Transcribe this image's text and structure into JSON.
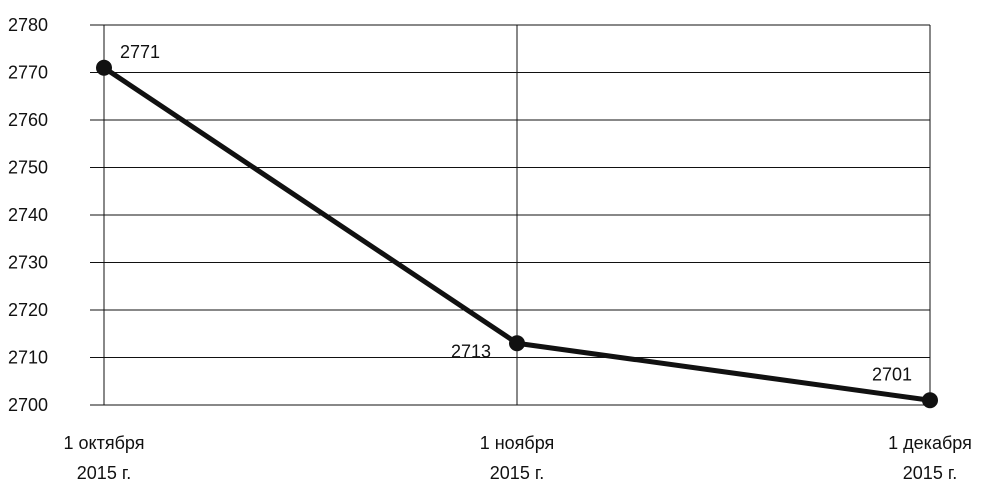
{
  "chart_data": {
    "type": "line",
    "title": "",
    "xlabel": "",
    "ylabel": "",
    "categories": [
      [
        "1 октября",
        "2015 г."
      ],
      [
        "1 ноября",
        "2015 г."
      ],
      [
        "1 декабря",
        "2015 г."
      ]
    ],
    "series": [
      {
        "values": [
          2771,
          2713,
          2701
        ],
        "color": "#111111"
      }
    ],
    "data_labels": [
      "2771",
      "2713",
      "2701"
    ],
    "y_ticks": [
      "2700",
      "2710",
      "2720",
      "2730",
      "2740",
      "2750",
      "2760",
      "2770",
      "2780"
    ],
    "ylim": [
      2700,
      2780
    ],
    "grid": true,
    "legend": "none"
  }
}
